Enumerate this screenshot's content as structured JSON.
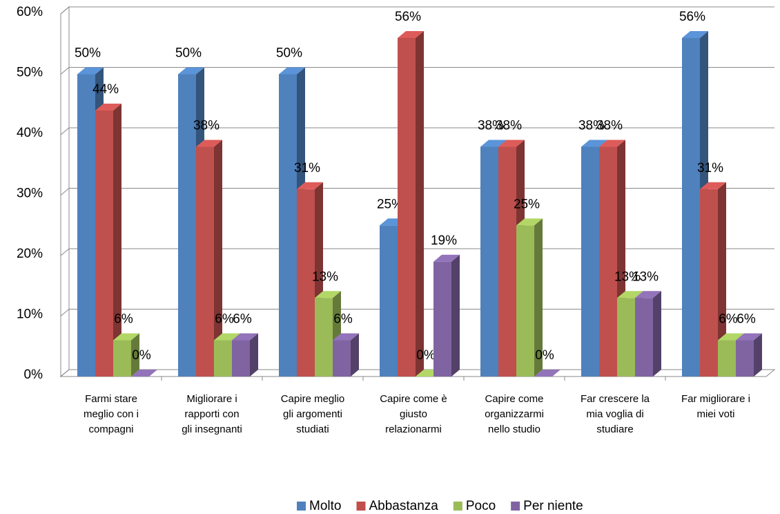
{
  "chart_data": {
    "type": "bar3d",
    "categories": [
      "Farmi stare\nmeglio con i\ncompagni",
      "Migliorare i\nrapporti con\ngli insegnanti",
      "Capire meglio\ngli argomenti\nstudiati",
      "Capire come è\ngiusto\nrelazionarmi",
      "Capire come\norganizzarmi\nnello studio",
      "Far crescere la\nmia voglia di\nstudiare",
      "Far migliorare i\nmiei voti"
    ],
    "series": [
      {
        "name": "Molto",
        "color": "#4f81bd",
        "values": [
          50,
          50,
          50,
          25,
          38,
          38,
          56
        ],
        "value_labels": [
          "50%",
          "50%",
          "50%",
          "25%",
          "38%",
          "38%",
          "56%"
        ]
      },
      {
        "name": "Abbastanza",
        "color": "#c0504d",
        "values": [
          44,
          38,
          31,
          56,
          38,
          38,
          31
        ],
        "value_labels": [
          "44%",
          "38%",
          "31%",
          "56%",
          "38%",
          "38%",
          "31%"
        ]
      },
      {
        "name": "Poco",
        "color": "#9bbb59",
        "values": [
          6,
          6,
          13,
          0,
          25,
          13,
          6
        ],
        "value_labels": [
          "6%",
          "6%",
          "13%",
          "0%",
          "25%",
          "13%",
          "6%"
        ]
      },
      {
        "name": "Per niente",
        "color": "#8064a2",
        "values": [
          0,
          6,
          6,
          19,
          0,
          13,
          6
        ],
        "value_labels": [
          "0%",
          "6%",
          "6%",
          "19%",
          "0%",
          "13%",
          "6%"
        ]
      }
    ],
    "ylim": [
      0,
      60
    ],
    "yticks": [
      {
        "value": 0,
        "label": "0%"
      },
      {
        "value": 10,
        "label": "10%"
      },
      {
        "value": 20,
        "label": "20%"
      },
      {
        "value": 30,
        "label": "30%"
      },
      {
        "value": 40,
        "label": "40%"
      },
      {
        "value": 50,
        "label": "50%"
      },
      {
        "value": 60,
        "label": "60%"
      }
    ],
    "grid": true,
    "legend": "bottom"
  }
}
